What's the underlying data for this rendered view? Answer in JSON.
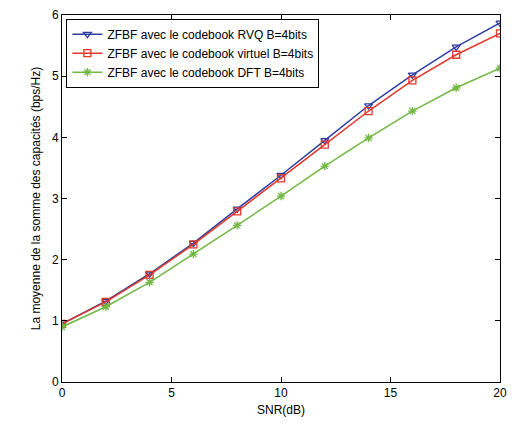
{
  "chart_data": {
    "type": "line",
    "x_label": "SNR(dB)",
    "y_label": "La moyenne de la somme des capacités (bps/Hz)",
    "x": [
      0,
      2,
      4,
      6,
      8,
      10,
      12,
      14,
      16,
      18,
      20
    ],
    "series": [
      {
        "name": "ZFBF avec le codebook RVQ B=4bits",
        "color": "#2f3fa0",
        "marker": "triangle-down",
        "values": [
          0.95,
          1.32,
          1.77,
          2.27,
          2.83,
          3.38,
          3.95,
          4.52,
          5.02,
          5.48,
          5.87
        ]
      },
      {
        "name": "ZFBF avec le codebook virtuel B=4bits",
        "color": "#e0392b",
        "marker": "square",
        "values": [
          0.95,
          1.31,
          1.75,
          2.25,
          2.79,
          3.33,
          3.88,
          4.43,
          4.93,
          5.35,
          5.7
        ]
      },
      {
        "name": "ZFBF avec le codebook DFT B=4bits",
        "color": "#72b843",
        "marker": "asterisk",
        "values": [
          0.9,
          1.23,
          1.63,
          2.09,
          2.56,
          3.04,
          3.53,
          3.99,
          4.43,
          4.81,
          5.13
        ]
      }
    ],
    "xlim": [
      0,
      20
    ],
    "xticks": [
      0,
      5,
      10,
      15,
      20
    ],
    "ylim": [
      0,
      6
    ],
    "yticks": [
      0,
      1,
      2,
      3,
      4,
      5,
      6
    ],
    "grid": false,
    "legend": "upper left"
  }
}
